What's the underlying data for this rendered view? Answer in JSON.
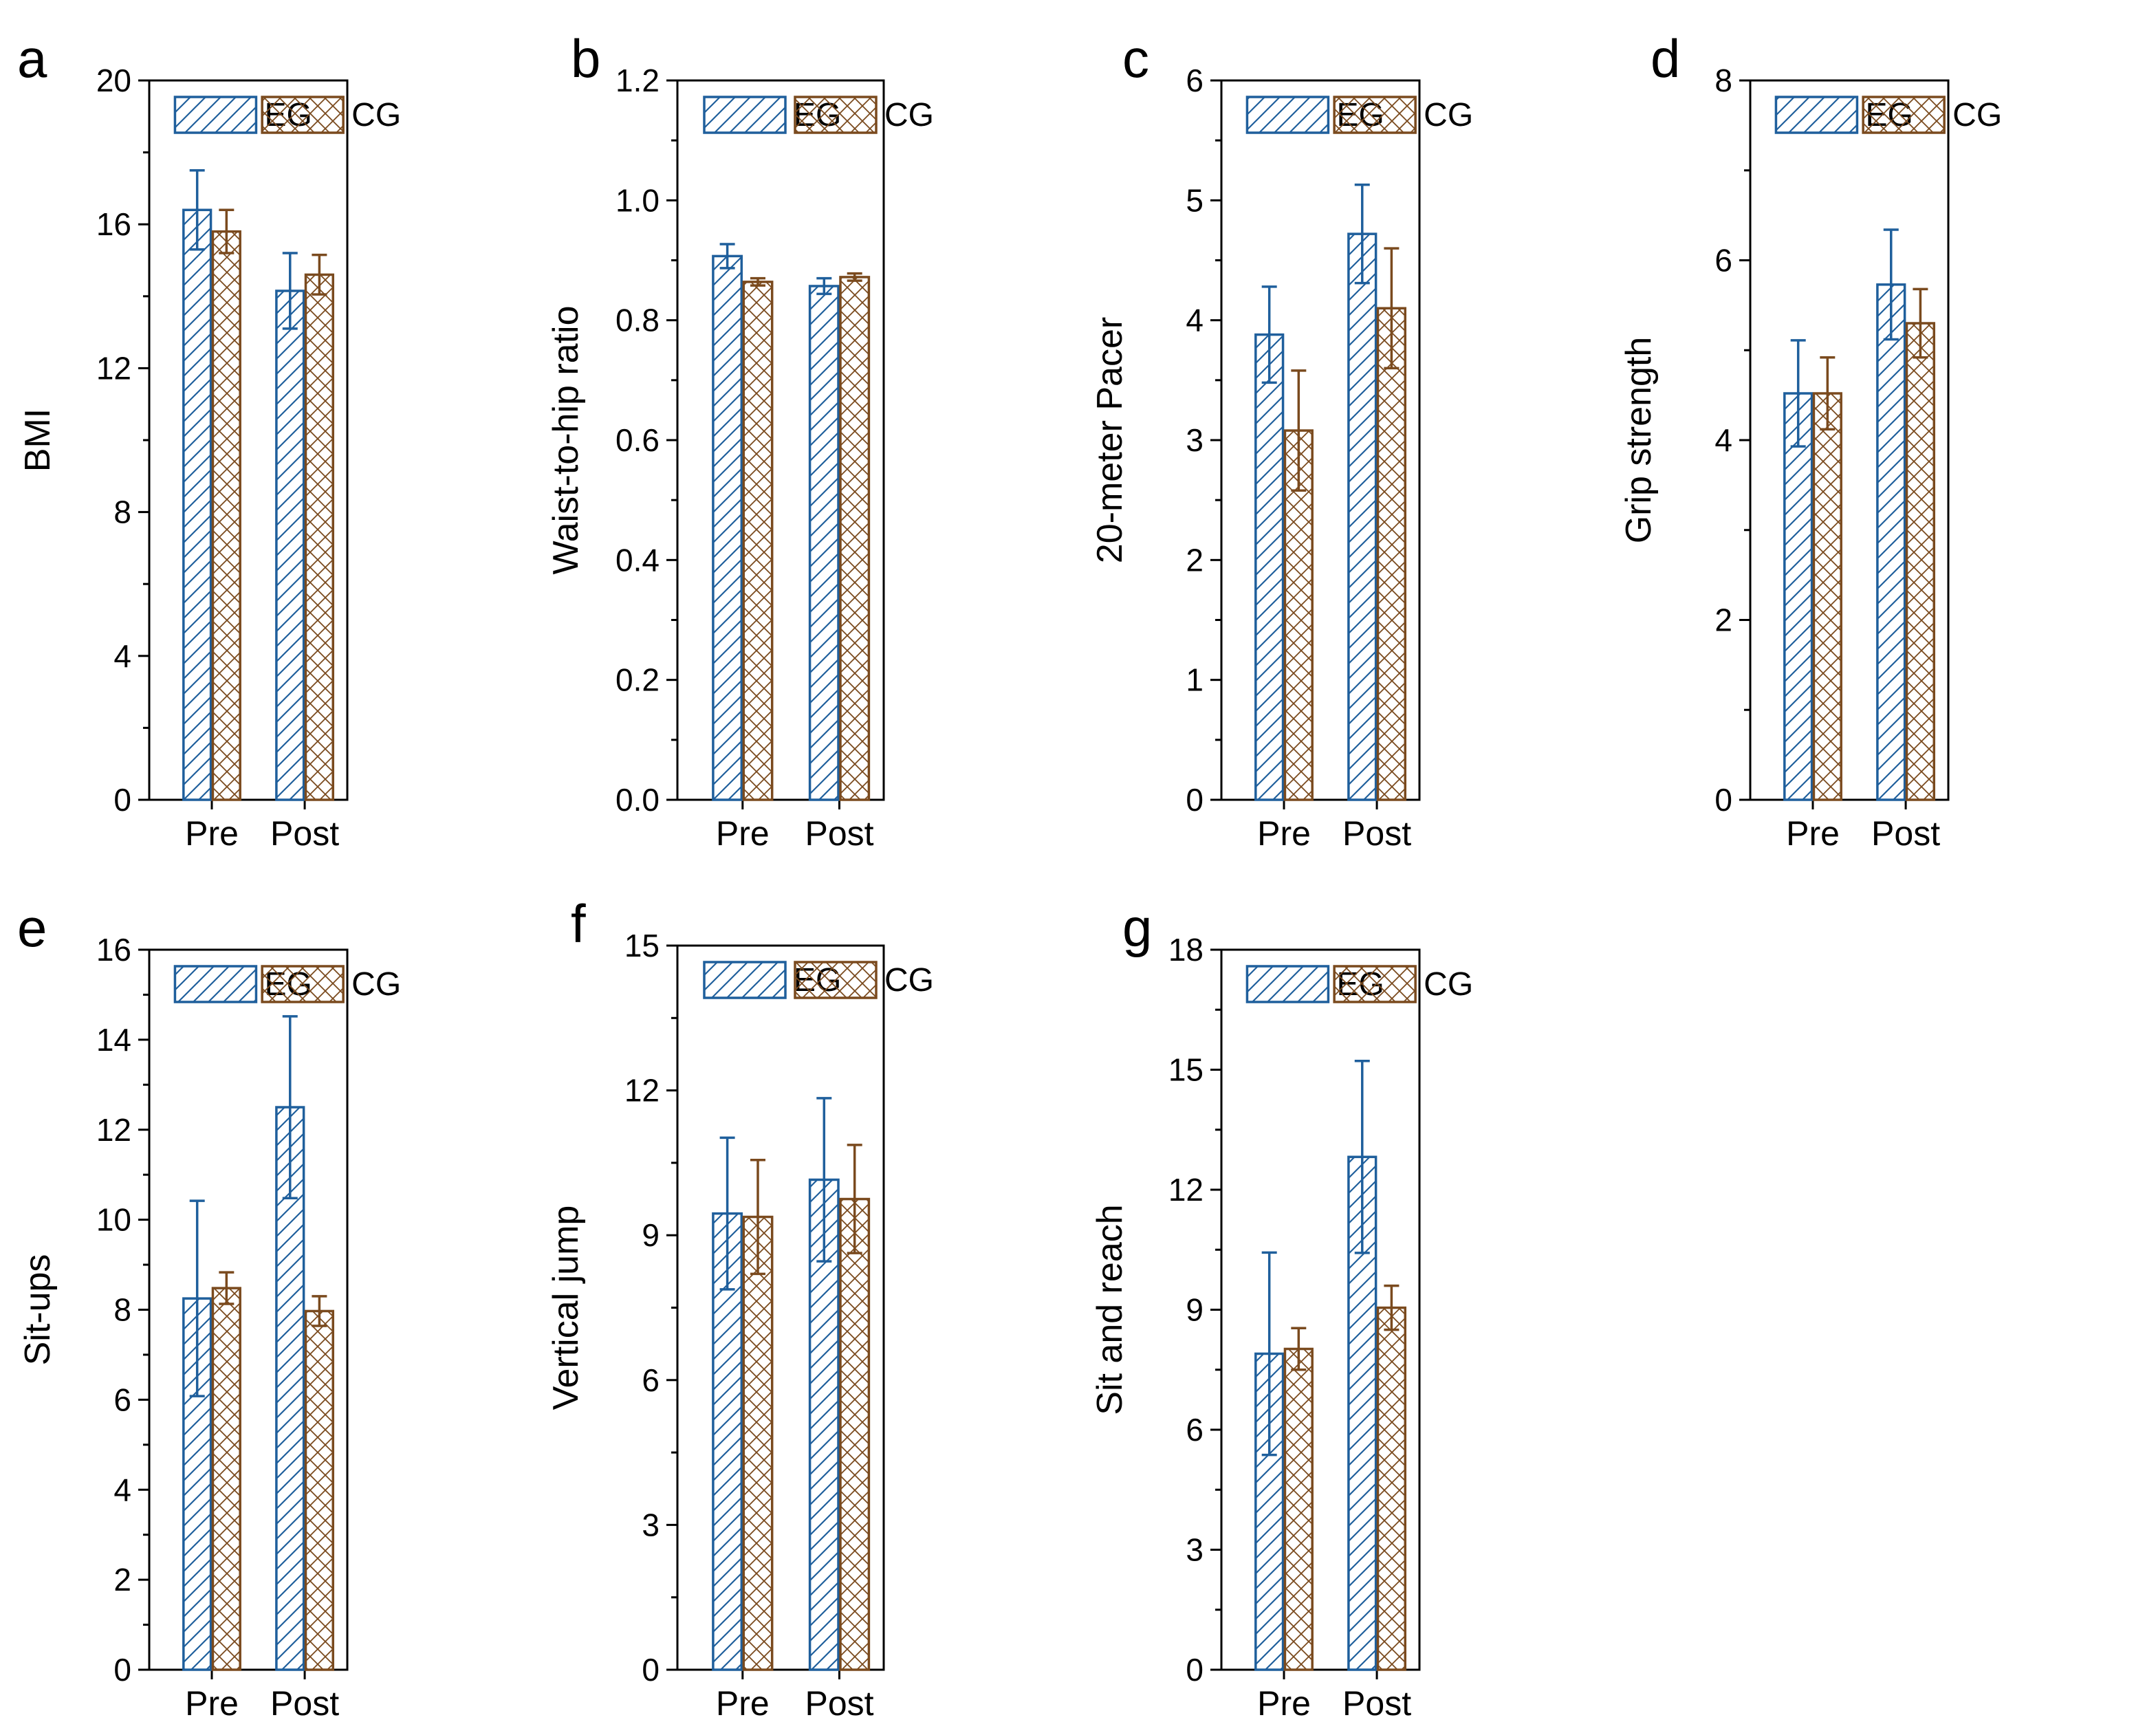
{
  "colors": {
    "eg": "#1f5f9c",
    "cg": "#7a4a1e",
    "axis": "#000000"
  },
  "legend": {
    "eg_label": "EG",
    "cg_label": "CG"
  },
  "chart_data": [
    {
      "panel": "a",
      "type": "bar",
      "ylabel": "BMI",
      "ylim": [
        0,
        20
      ],
      "yticks": [
        0,
        4,
        8,
        12,
        16,
        20
      ],
      "categories": [
        "Pre",
        "Post"
      ],
      "series": [
        {
          "name": "EG",
          "values": [
            16.4,
            14.15
          ],
          "errors": [
            1.1,
            1.05
          ]
        },
        {
          "name": "CG",
          "values": [
            15.8,
            14.6
          ],
          "errors": [
            0.6,
            0.55
          ]
        }
      ]
    },
    {
      "panel": "b",
      "type": "bar",
      "ylabel": "Waist-to-hip ratio",
      "ylim": [
        0,
        1.2
      ],
      "yticks": [
        "0.0",
        "0.2",
        "0.4",
        "0.6",
        "0.8",
        "1.0",
        "1.2"
      ],
      "categories": [
        "Pre",
        "Post"
      ],
      "series": [
        {
          "name": "EG",
          "values": [
            0.907,
            0.857
          ],
          "errors": [
            0.02,
            0.013
          ]
        },
        {
          "name": "CG",
          "values": [
            0.864,
            0.872
          ],
          "errors": [
            0.006,
            0.006
          ]
        }
      ]
    },
    {
      "panel": "c",
      "type": "bar",
      "ylabel": "20-meter Pacer",
      "ylim": [
        0,
        6
      ],
      "yticks": [
        0,
        1,
        2,
        3,
        4,
        5,
        6
      ],
      "categories": [
        "Pre",
        "Post"
      ],
      "series": [
        {
          "name": "EG",
          "values": [
            3.88,
            4.72
          ],
          "errors": [
            0.4,
            0.41
          ]
        },
        {
          "name": "CG",
          "values": [
            3.08,
            4.1
          ],
          "errors": [
            0.5,
            0.5
          ]
        }
      ]
    },
    {
      "panel": "d",
      "type": "bar",
      "ylabel": "Grip strength",
      "ylim": [
        0,
        8
      ],
      "yticks": [
        0,
        2,
        4,
        6,
        8
      ],
      "categories": [
        "Pre",
        "Post"
      ],
      "series": [
        {
          "name": "EG",
          "values": [
            4.52,
            5.73
          ],
          "errors": [
            0.59,
            0.61
          ]
        },
        {
          "name": "CG",
          "values": [
            4.52,
            5.3
          ],
          "errors": [
            0.4,
            0.38
          ]
        }
      ]
    },
    {
      "panel": "e",
      "type": "bar",
      "ylabel": "Sit-ups",
      "ylim": [
        0,
        16
      ],
      "yticks": [
        0,
        2,
        4,
        6,
        8,
        10,
        12,
        14,
        16
      ],
      "categories": [
        "Pre",
        "Post"
      ],
      "series": [
        {
          "name": "EG",
          "values": [
            8.25,
            12.5
          ],
          "errors": [
            2.17,
            2.02
          ]
        },
        {
          "name": "CG",
          "values": [
            8.48,
            7.97
          ],
          "errors": [
            0.35,
            0.33
          ]
        }
      ]
    },
    {
      "panel": "f",
      "type": "bar",
      "ylabel": "Vertical jump",
      "ylim": [
        0,
        15
      ],
      "yticks": [
        0,
        3,
        6,
        9,
        12,
        15
      ],
      "categories": [
        "Pre",
        "Post"
      ],
      "series": [
        {
          "name": "EG",
          "values": [
            9.45,
            10.15
          ],
          "errors": [
            1.57,
            1.69
          ]
        },
        {
          "name": "CG",
          "values": [
            9.38,
            9.75
          ],
          "errors": [
            1.18,
            1.12
          ]
        }
      ]
    },
    {
      "panel": "g",
      "type": "bar",
      "ylabel": "Sit and reach",
      "ylim": [
        0,
        18
      ],
      "yticks": [
        0,
        3,
        6,
        9,
        12,
        15,
        18
      ],
      "categories": [
        "Pre",
        "Post"
      ],
      "series": [
        {
          "name": "EG",
          "values": [
            7.9,
            12.82
          ],
          "errors": [
            2.53,
            2.4
          ]
        },
        {
          "name": "CG",
          "values": [
            8.02,
            9.05
          ],
          "errors": [
            0.52,
            0.55
          ]
        }
      ]
    }
  ]
}
